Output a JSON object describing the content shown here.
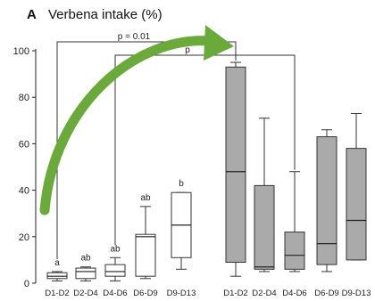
{
  "panel_letter": "A",
  "chart_data": {
    "type": "box",
    "title": "Verbena intake (%)",
    "ylim": [
      0,
      100
    ],
    "yticks": [
      0,
      20,
      40,
      60,
      80,
      100
    ],
    "categories": [
      "D1-D2",
      "D2-D4",
      "D4-D6",
      "D6-D9",
      "D9-D13",
      "D1-D2",
      "D2-D4",
      "D4-D6",
      "D6-D9",
      "D9-D13"
    ],
    "groups": [
      {
        "fill": "#ffffff",
        "boxes": [
          {
            "category": "D1-D2",
            "min": 1,
            "q1": 2,
            "median": 3,
            "q3": 4.5,
            "max": 5,
            "label": "a"
          },
          {
            "category": "D2-D4",
            "min": 1,
            "q1": 2,
            "median": 5,
            "q3": 6.5,
            "max": 7,
            "label": "ab"
          },
          {
            "category": "D4-D6",
            "min": 1,
            "q1": 3,
            "median": 5,
            "q3": 8,
            "max": 11,
            "label": "ab"
          },
          {
            "category": "D6-D9",
            "min": 2,
            "q1": 3,
            "median": 20,
            "q3": 21,
            "max": 33,
            "label": "ab"
          },
          {
            "category": "D9-D13",
            "min": 6,
            "q1": 11,
            "median": 25,
            "q3": 39,
            "max": 39,
            "label": "b"
          }
        ]
      },
      {
        "fill": "#aaaaaa",
        "boxes": [
          {
            "category": "D1-D2",
            "min": 3,
            "q1": 9,
            "median": 48,
            "q3": 93,
            "max": 95,
            "label": ""
          },
          {
            "category": "D2-D4",
            "min": 5,
            "q1": 6,
            "median": 7,
            "q3": 42,
            "max": 71,
            "label": ""
          },
          {
            "category": "D4-D6",
            "min": 5,
            "q1": 6,
            "median": 12,
            "q3": 22,
            "max": 48,
            "label": ""
          },
          {
            "category": "D6-D9",
            "min": 5,
            "q1": 8,
            "median": 17,
            "q3": 63,
            "max": 66,
            "label": ""
          },
          {
            "category": "D9-D13",
            "min": 10,
            "q1": 10,
            "median": 27,
            "q3": 58,
            "max": 73,
            "label": ""
          }
        ]
      }
    ],
    "comparisons": [
      {
        "label": "p = 0.01"
      },
      {
        "label": "p"
      }
    ],
    "arrow_color": "#6aaa3a"
  }
}
